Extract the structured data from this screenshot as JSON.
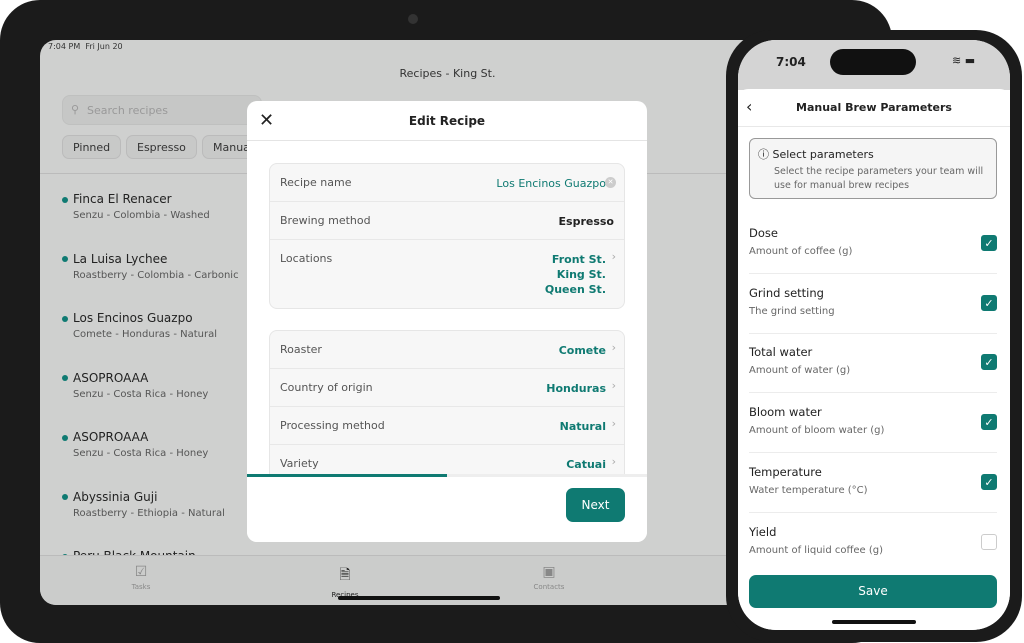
{
  "ipad": {
    "status_time": "7:04 PM",
    "status_date": "Fri Jun 20",
    "title": "Recipes - King St.",
    "search_placeholder": "Search recipes",
    "filters": [
      "Pinned",
      "Espresso",
      "Manual"
    ],
    "recipes": [
      {
        "name": "Finca El Renacer",
        "details": "Senzu - Colombia - Washed"
      },
      {
        "name": "La Luisa Lychee",
        "details": "Roastberry - Colombia - Carbonic"
      },
      {
        "name": "Los Encinos Guazpo",
        "details": "Comete - Honduras - Natural"
      },
      {
        "name": "ASOPROAAA",
        "details": "Senzu - Costa Rica - Honey"
      },
      {
        "name": "ASOPROAAA",
        "details": "Senzu - Costa Rica - Honey"
      },
      {
        "name": "Abyssinia Guji",
        "details": "Roastberry - Ethiopia - Natural"
      },
      {
        "name": "Peru Black Mountain",
        "details": ""
      }
    ],
    "tabs": [
      {
        "label": "Tasks",
        "icon": "checklist-icon"
      },
      {
        "label": "Recipes",
        "icon": "document-icon"
      },
      {
        "label": "Contacts",
        "icon": "contact-card-icon"
      }
    ],
    "active_tab": "Recipes",
    "accent": "#0f7a72"
  },
  "modal": {
    "title": "Edit Recipe",
    "group1": [
      {
        "label": "Recipe name",
        "value": "Los Encinos Guazpo"
      },
      {
        "label": "Brewing method",
        "value": "Espresso"
      },
      {
        "label": "Locations",
        "value": [
          "Front St.",
          "King St.",
          "Queen St."
        ]
      }
    ],
    "group2": [
      {
        "label": "Roaster",
        "value": "Comete"
      },
      {
        "label": "Country of origin",
        "value": "Honduras"
      },
      {
        "label": "Processing method",
        "value": "Natural"
      },
      {
        "label": "Variety",
        "value": "Catuai"
      }
    ],
    "progress_percent": 50,
    "next_label": "Next"
  },
  "phone": {
    "time": "7:04",
    "title": "Manual Brew Parameters",
    "info_title": "Select parameters",
    "info_text": "Select the recipe parameters your team will use for manual brew recipes",
    "params": [
      {
        "name": "Dose",
        "desc": "Amount of coffee (g)",
        "checked": true
      },
      {
        "name": "Grind setting",
        "desc": "The grind setting",
        "checked": true
      },
      {
        "name": "Total water",
        "desc": "Amount of water (g)",
        "checked": true
      },
      {
        "name": "Bloom water",
        "desc": "Amount of bloom water (g)",
        "checked": true
      },
      {
        "name": "Temperature",
        "desc": "Water temperature (°C)",
        "checked": true
      },
      {
        "name": "Yield",
        "desc": "Amount of liquid coffee (g)",
        "checked": false
      }
    ],
    "save_label": "Save"
  }
}
